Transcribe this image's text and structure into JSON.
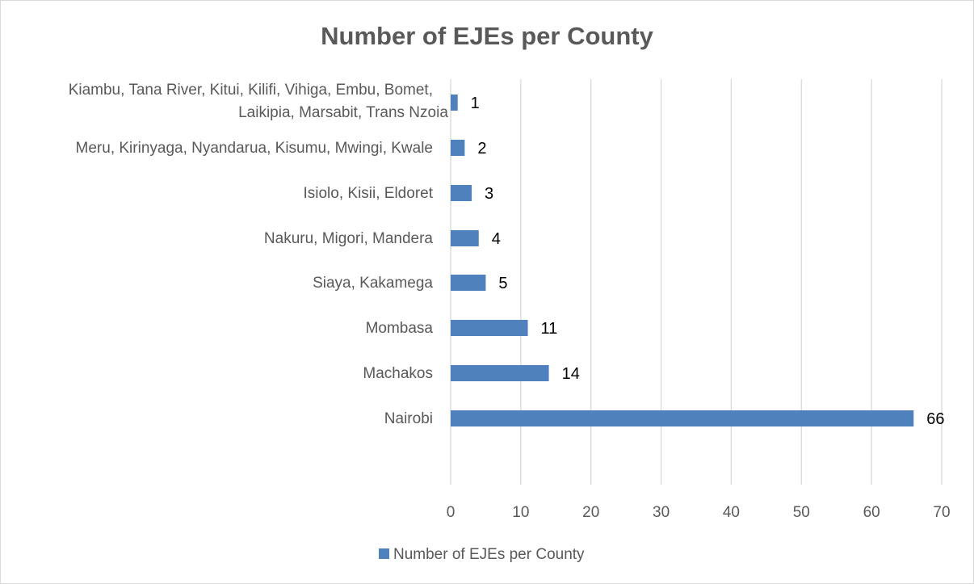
{
  "chart_data": {
    "type": "bar",
    "orientation": "horizontal",
    "title": "Number of EJEs per County",
    "categories": [
      [
        "Kiambu, Tana River, Kitui, Kilifi, Vihiga, Embu, Bomet,",
        "Laikipia, Marsabit, Trans Nzoia"
      ],
      [
        "Meru, Kirinyaga, Nyandarua, Kisumu, Mwingi, Kwale"
      ],
      [
        "Isiolo, Kisii, Eldoret"
      ],
      [
        "Nakuru, Migori, Mandera"
      ],
      [
        "Siaya, Kakamega"
      ],
      [
        "Mombasa"
      ],
      [
        "Machakos"
      ],
      [
        "Nairobi"
      ]
    ],
    "series": [
      {
        "name": "Number of EJEs per County",
        "values": [
          1,
          2,
          3,
          4,
          5,
          11,
          14,
          66
        ],
        "color": "#4f81bd"
      }
    ],
    "xlim": [
      0,
      70
    ],
    "xticks": [
      0,
      10,
      20,
      30,
      40,
      50,
      60,
      70
    ],
    "xlabel": "",
    "ylabel": "",
    "grid": "vertical",
    "legend": "bottom",
    "data_labels": true
  }
}
